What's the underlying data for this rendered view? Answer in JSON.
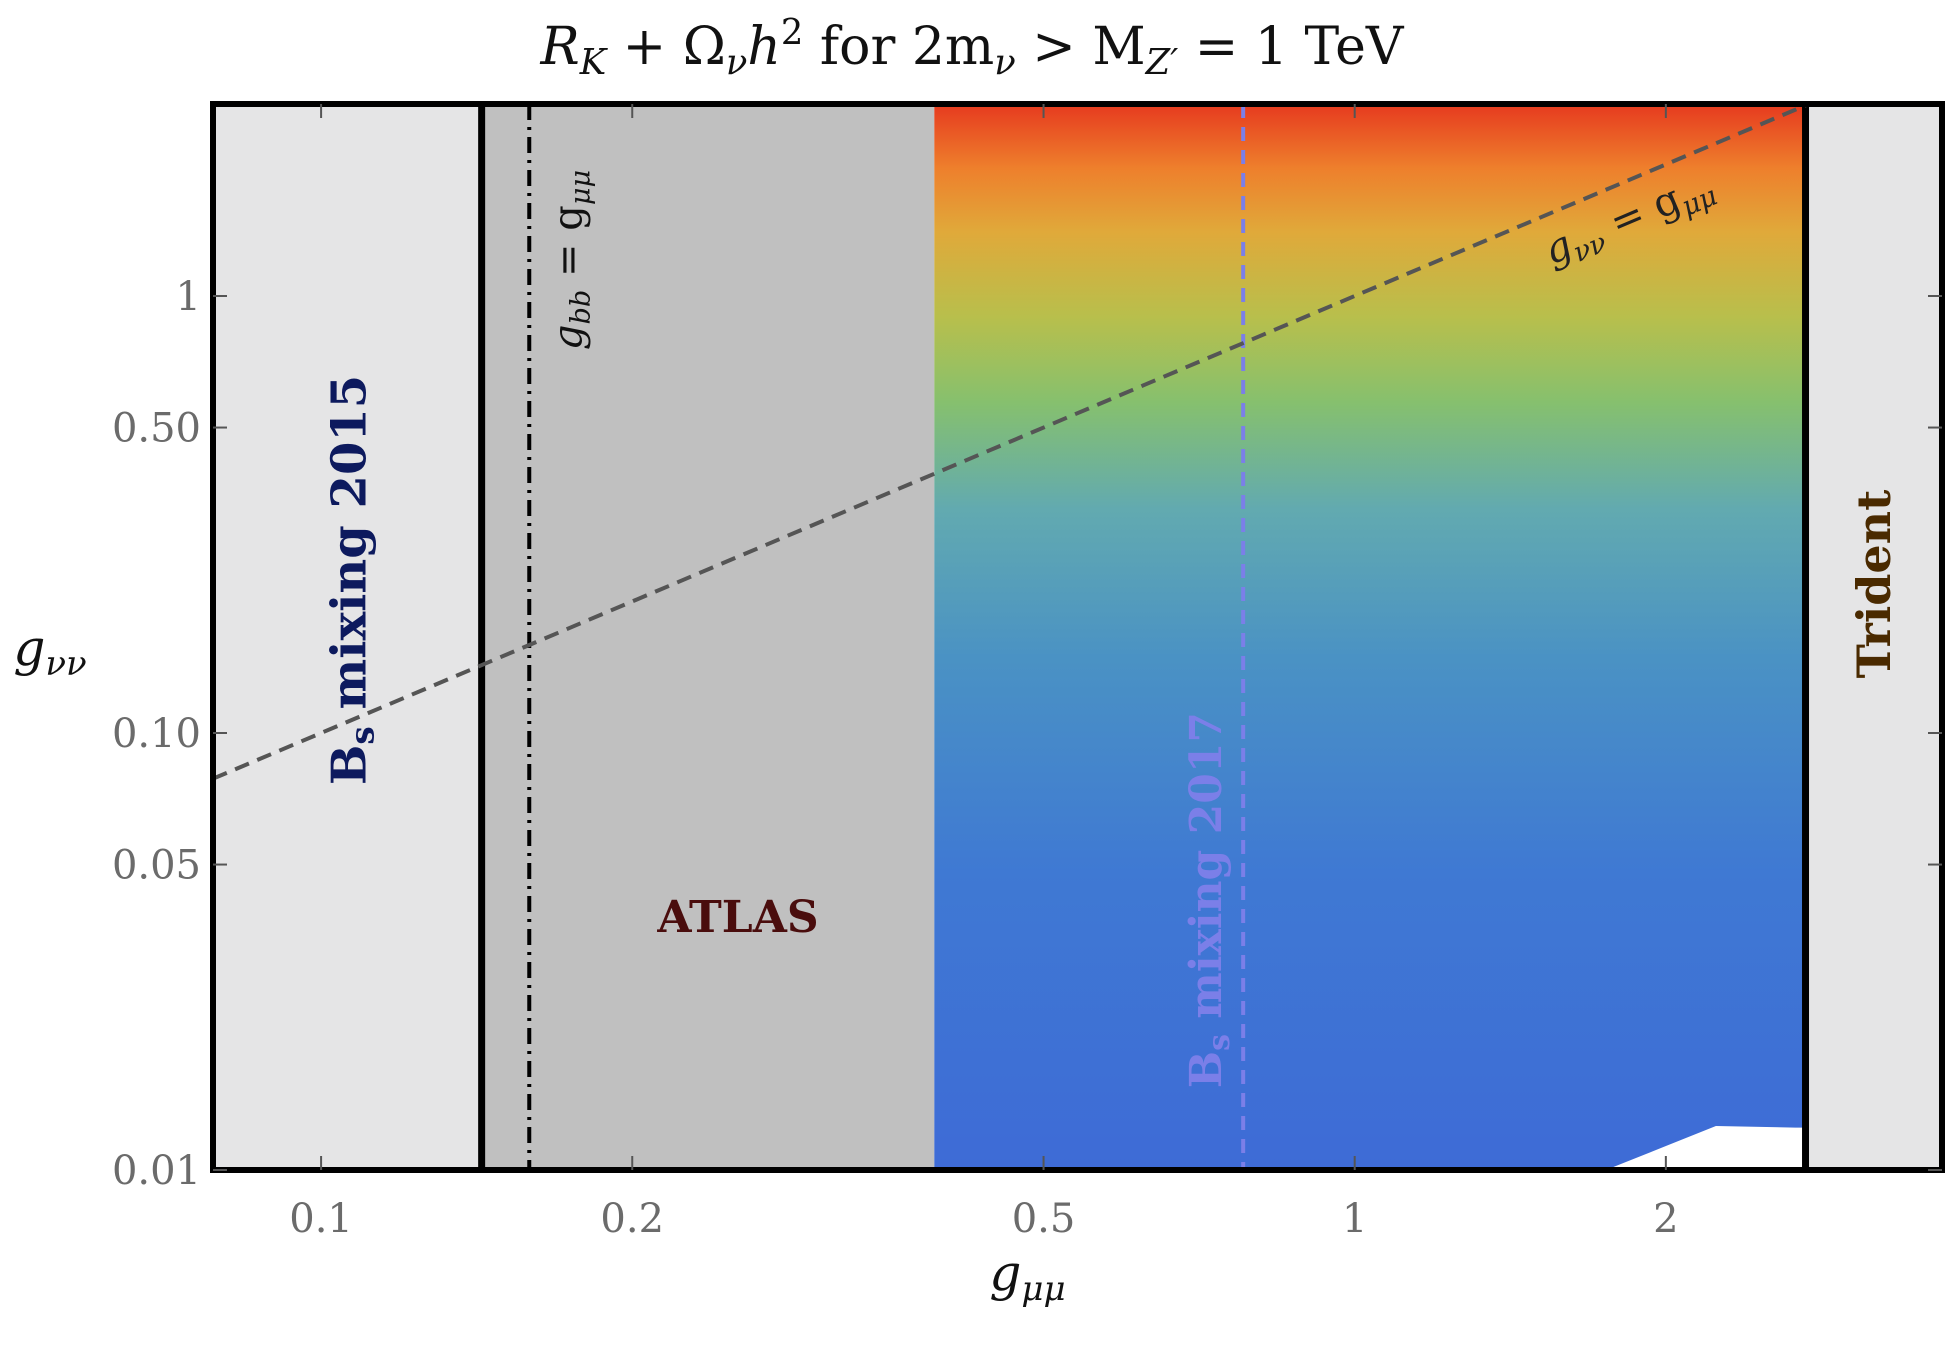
{
  "chart_data": {
    "type": "heatmap",
    "title_parts": {
      "r": "R",
      "r_sub": "K",
      "plus": " + Ω",
      "omega_sub": "ν",
      "h": "h",
      "sq": "2",
      "rest1": " for 2m",
      "m_sub": "ν",
      "rest2": " > M",
      "z_sub": "Z′",
      "rest3": " = 1 TeV"
    },
    "xlabel": {
      "base": "g",
      "sub": "μμ"
    },
    "ylabel": {
      "base": "g",
      "sub": "νν"
    },
    "x_scale": "log",
    "y_scale": "log",
    "xlim": [
      0.0786,
      3.7
    ],
    "ylim": [
      0.01,
      2.75
    ],
    "x_ticks": [
      {
        "value": 0.1,
        "label": "0.1"
      },
      {
        "value": 0.2,
        "label": "0.2"
      },
      {
        "value": 0.5,
        "label": "0.5"
      },
      {
        "value": 1,
        "label": "1"
      },
      {
        "value": 2,
        "label": "2"
      }
    ],
    "y_ticks": [
      {
        "value": 0.01,
        "label": "0.01"
      },
      {
        "value": 0.05,
        "label": "0.05"
      },
      {
        "value": 0.1,
        "label": "0.10"
      },
      {
        "value": 0.5,
        "label": "0.50"
      },
      {
        "value": 1,
        "label": "1"
      }
    ],
    "regions": [
      {
        "name": "bs2015",
        "x_from": 0.0786,
        "x_to": 0.143,
        "color": "#e5e5e6",
        "label": "B",
        "label_sub": "s",
        "label_rest": " mixing 2015",
        "label_color": "#0d1a5e"
      },
      {
        "name": "atlas",
        "x_from": 0.143,
        "x_to": 0.392,
        "color": "#c0c0c0",
        "label": "ATLAS",
        "label_color": "#4a0d0d"
      },
      {
        "name": "trident",
        "x_from": 2.73,
        "x_to": 3.7,
        "color": "#e5e5e6",
        "label": "Trident",
        "label_color": "#4a2a00"
      }
    ],
    "vertical_lines": [
      {
        "name": "bs2015-boundary",
        "x": 0.143,
        "style": "solid",
        "color": "#000000"
      },
      {
        "name": "gbb-equals-gmumu",
        "x": 0.159,
        "style": "dashdot",
        "color": "#000000",
        "label_base": "g",
        "label_sub": "bb",
        "label_rest": " = g",
        "label_sub2": "μμ"
      },
      {
        "name": "bs2017",
        "x": 0.78,
        "style": "dashed",
        "color": "#7b7fe8",
        "label": "B",
        "label_sub": "s",
        "label_rest": " mixing 2017"
      },
      {
        "name": "trident-boundary",
        "x": 2.73,
        "style": "solid",
        "color": "#000000"
      }
    ],
    "diagonal_line": {
      "relation": "g_nunu = g_mumu",
      "label_base": "g",
      "label_sub": "νν",
      "label_rest": " = g",
      "label_sub2": "μμ",
      "color": "#555555",
      "style": "dashed"
    },
    "colored_region": {
      "x_from": 0.392,
      "x_to": 2.73,
      "colormap": [
        "#3e6bd6",
        "#3f79d3",
        "#4a92c4",
        "#62aab0",
        "#86c06e",
        "#b8bf4c",
        "#e0a93a",
        "#ee7f2c",
        "#e63a1f"
      ],
      "excluded_corner_color": "#ffffff"
    }
  }
}
